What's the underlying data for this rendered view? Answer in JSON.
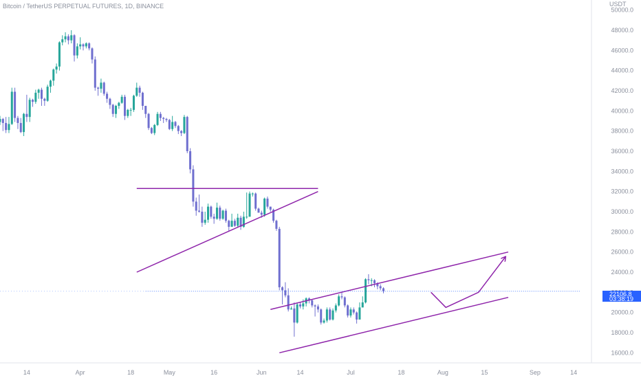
{
  "header": {
    "title": "Bitcoin / TetherUS PERPETUAL FUTURES, 1D, BINANCE"
  },
  "price_tag": {
    "price": "22106.8",
    "countdown": "03:38:19"
  },
  "chart_data": {
    "type": "candlestick",
    "title": "Bitcoin / TetherUS PERPETUAL FUTURES, 1D, BINANCE",
    "unit": "USDT",
    "ylim": [
      15000,
      51000
    ],
    "xlim": [
      "2022-03-05",
      "2022-09-20"
    ],
    "y_ticks": [
      "50000.0",
      "48000.0",
      "46000.0",
      "44000.0",
      "42000.0",
      "40000.0",
      "38000.0",
      "36000.0",
      "34000.0",
      "32000.0",
      "30000.0",
      "28000.0",
      "26000.0",
      "24000.0",
      "22000.0",
      "20000.0",
      "18000.0",
      "16000.0"
    ],
    "x_ticks": [
      {
        "label": "14",
        "date": "2022-03-14"
      },
      {
        "label": "Apr",
        "date": "2022-04-01"
      },
      {
        "label": "18",
        "date": "2022-04-18"
      },
      {
        "label": "May",
        "date": "2022-05-01"
      },
      {
        "label": "16",
        "date": "2022-05-16"
      },
      {
        "label": "Jun",
        "date": "2022-06-01"
      },
      {
        "label": "14",
        "date": "2022-06-14"
      },
      {
        "label": "Jul",
        "date": "2022-07-01"
      },
      {
        "label": "18",
        "date": "2022-07-18"
      },
      {
        "label": "Aug",
        "date": "2022-08-01"
      },
      {
        "label": "15",
        "date": "2022-08-15"
      },
      {
        "label": "Sep",
        "date": "2022-09-01"
      },
      {
        "label": "14",
        "date": "2022-09-14"
      }
    ],
    "last_price": 22106.8,
    "grid": false,
    "colors": {
      "up": "#26a69a",
      "down": "#6f6fcf",
      "drawing": "#8e24aa",
      "price_line": "#2962ff"
    },
    "candles": {
      "start": "2022-03-05",
      "interval": "1D",
      "close": [
        39200,
        38800,
        38100,
        38700,
        41900,
        39300,
        38800,
        37900,
        39700,
        39400,
        41100,
        40900,
        41800,
        42100,
        41200,
        41000,
        42400,
        43000,
        44100,
        44400,
        46800,
        47100,
        47400,
        47000,
        47500,
        45500,
        46400,
        46600,
        46400,
        46700,
        46200,
        45100,
        42300,
        42200,
        42800,
        41700,
        41200,
        40600,
        39700,
        40500,
        40800,
        41400,
        39500,
        40100,
        40100,
        41500,
        42300,
        41800,
        40500,
        39700,
        38300,
        37800,
        38600,
        39700,
        39300,
        39200,
        39100,
        38200,
        38900,
        38500,
        38000,
        37800,
        39400,
        36000,
        34200,
        31000,
        30100,
        30000,
        28900,
        29200,
        30500,
        29500,
        29300,
        30400,
        29300,
        30100,
        29100,
        28500,
        29100,
        28600,
        29400,
        28500,
        29500,
        29500,
        31800,
        31800,
        30300,
        29900,
        29700,
        31300,
        30500,
        30200,
        29100,
        28300,
        22500,
        22200,
        21700,
        20300,
        20400,
        19000,
        20800,
        20600,
        20900,
        21400,
        21200,
        20700,
        20600,
        20300,
        19000,
        19200,
        20300,
        19300,
        20200,
        20700,
        21600,
        21500,
        20700,
        19700,
        20300,
        20000,
        19300,
        20500,
        21000,
        23300,
        23200,
        23200,
        22900,
        22600,
        22400,
        22106.8
      ],
      "high": [
        39500,
        39300,
        39400,
        39400,
        42300,
        42300,
        39500,
        39300,
        39800,
        41600,
        41300,
        41200,
        42100,
        42200,
        42300,
        41300,
        42600,
        43100,
        44200,
        44700,
        46900,
        47500,
        47800,
        47600,
        48000,
        47600,
        46700,
        47300,
        46700,
        46800,
        46800,
        46300,
        45400,
        42400,
        43200,
        42900,
        41900,
        41300,
        40700,
        40600,
        40900,
        41600,
        41600,
        40200,
        40300,
        41600,
        42800,
        42500,
        41900,
        40500,
        39800,
        38400,
        38700,
        39900,
        39900,
        39400,
        39300,
        39200,
        39500,
        39000,
        38600,
        38100,
        39600,
        39500,
        36300,
        34600,
        31400,
        31700,
        30500,
        30000,
        30800,
        30600,
        29800,
        30900,
        30600,
        30200,
        30300,
        29200,
        29800,
        29300,
        29800,
        29600,
        30000,
        31900,
        32000,
        31900,
        31900,
        30400,
        30100,
        31400,
        31500,
        30500,
        30300,
        29200,
        28500,
        22600,
        23000,
        22400,
        20600,
        21000,
        21000,
        21000,
        21300,
        21500,
        21500,
        21300,
        20800,
        20800,
        20400,
        19400,
        20500,
        20500,
        20400,
        20900,
        21800,
        22000,
        21600,
        20800,
        20500,
        20500,
        20100,
        21000,
        21600,
        23400,
        23800,
        23400,
        23300,
        23000,
        22800,
        22500
      ],
      "low": [
        38600,
        38000,
        37800,
        37800,
        38600,
        38900,
        38200,
        37800,
        37500,
        38900,
        38900,
        40400,
        40700,
        41200,
        40500,
        40500,
        40900,
        41800,
        42500,
        43700,
        44000,
        46500,
        46800,
        46600,
        46700,
        44900,
        45200,
        46100,
        46000,
        46200,
        46000,
        44700,
        42000,
        41500,
        41800,
        41500,
        40800,
        40200,
        39400,
        39300,
        40200,
        40700,
        39100,
        39300,
        39500,
        39900,
        41400,
        41400,
        40100,
        39300,
        38100,
        37700,
        37600,
        38500,
        39000,
        38800,
        38900,
        38100,
        38000,
        38300,
        37700,
        37500,
        37700,
        35800,
        33800,
        30500,
        29600,
        29900,
        28500,
        28700,
        28900,
        29300,
        28800,
        29200,
        29100,
        29200,
        28900,
        28100,
        28500,
        28500,
        28400,
        28200,
        28400,
        29300,
        29600,
        31500,
        30100,
        29900,
        29400,
        29500,
        30300,
        30000,
        28900,
        28100,
        22200,
        20800,
        21500,
        20100,
        20300,
        17600,
        18900,
        20400,
        20300,
        20600,
        20900,
        20500,
        19600,
        20000,
        18800,
        18900,
        19000,
        19200,
        19200,
        20000,
        20600,
        21300,
        20500,
        19500,
        19500,
        19800,
        18900,
        19400,
        20500,
        20900,
        22800,
        22600,
        22500,
        22300,
        22200,
        21900
      ],
      "note": "open of each candle equals the previous candle's close; first open 38900"
    },
    "drawings": [
      {
        "type": "horizontal-line",
        "name": "resistance",
        "from": [
          "2022-04-20",
          32300
        ],
        "to": [
          "2022-06-20",
          32300
        ]
      },
      {
        "type": "trend-line",
        "name": "rising-support",
        "from": [
          "2022-04-20",
          24000
        ],
        "to": [
          "2022-06-20",
          32000
        ]
      },
      {
        "type": "trend-line",
        "name": "channel-upper",
        "from": [
          "2022-06-04",
          20300
        ],
        "to": [
          "2022-08-23",
          26000
        ]
      },
      {
        "type": "trend-line",
        "name": "channel-lower",
        "from": [
          "2022-06-07",
          16000
        ],
        "to": [
          "2022-08-23",
          21500
        ]
      },
      {
        "type": "path-arrow",
        "name": "projection",
        "points": [
          [
            "2022-07-28",
            22000
          ],
          [
            "2022-08-02",
            20500
          ],
          [
            "2022-08-13",
            22000
          ],
          [
            "2022-08-22",
            25500
          ]
        ]
      },
      {
        "type": "price-line",
        "name": "last-price-line",
        "from": [
          "2022-04-23",
          22106.8
        ],
        "to": [
          "2022-09-16",
          22106.8
        ]
      }
    ]
  }
}
